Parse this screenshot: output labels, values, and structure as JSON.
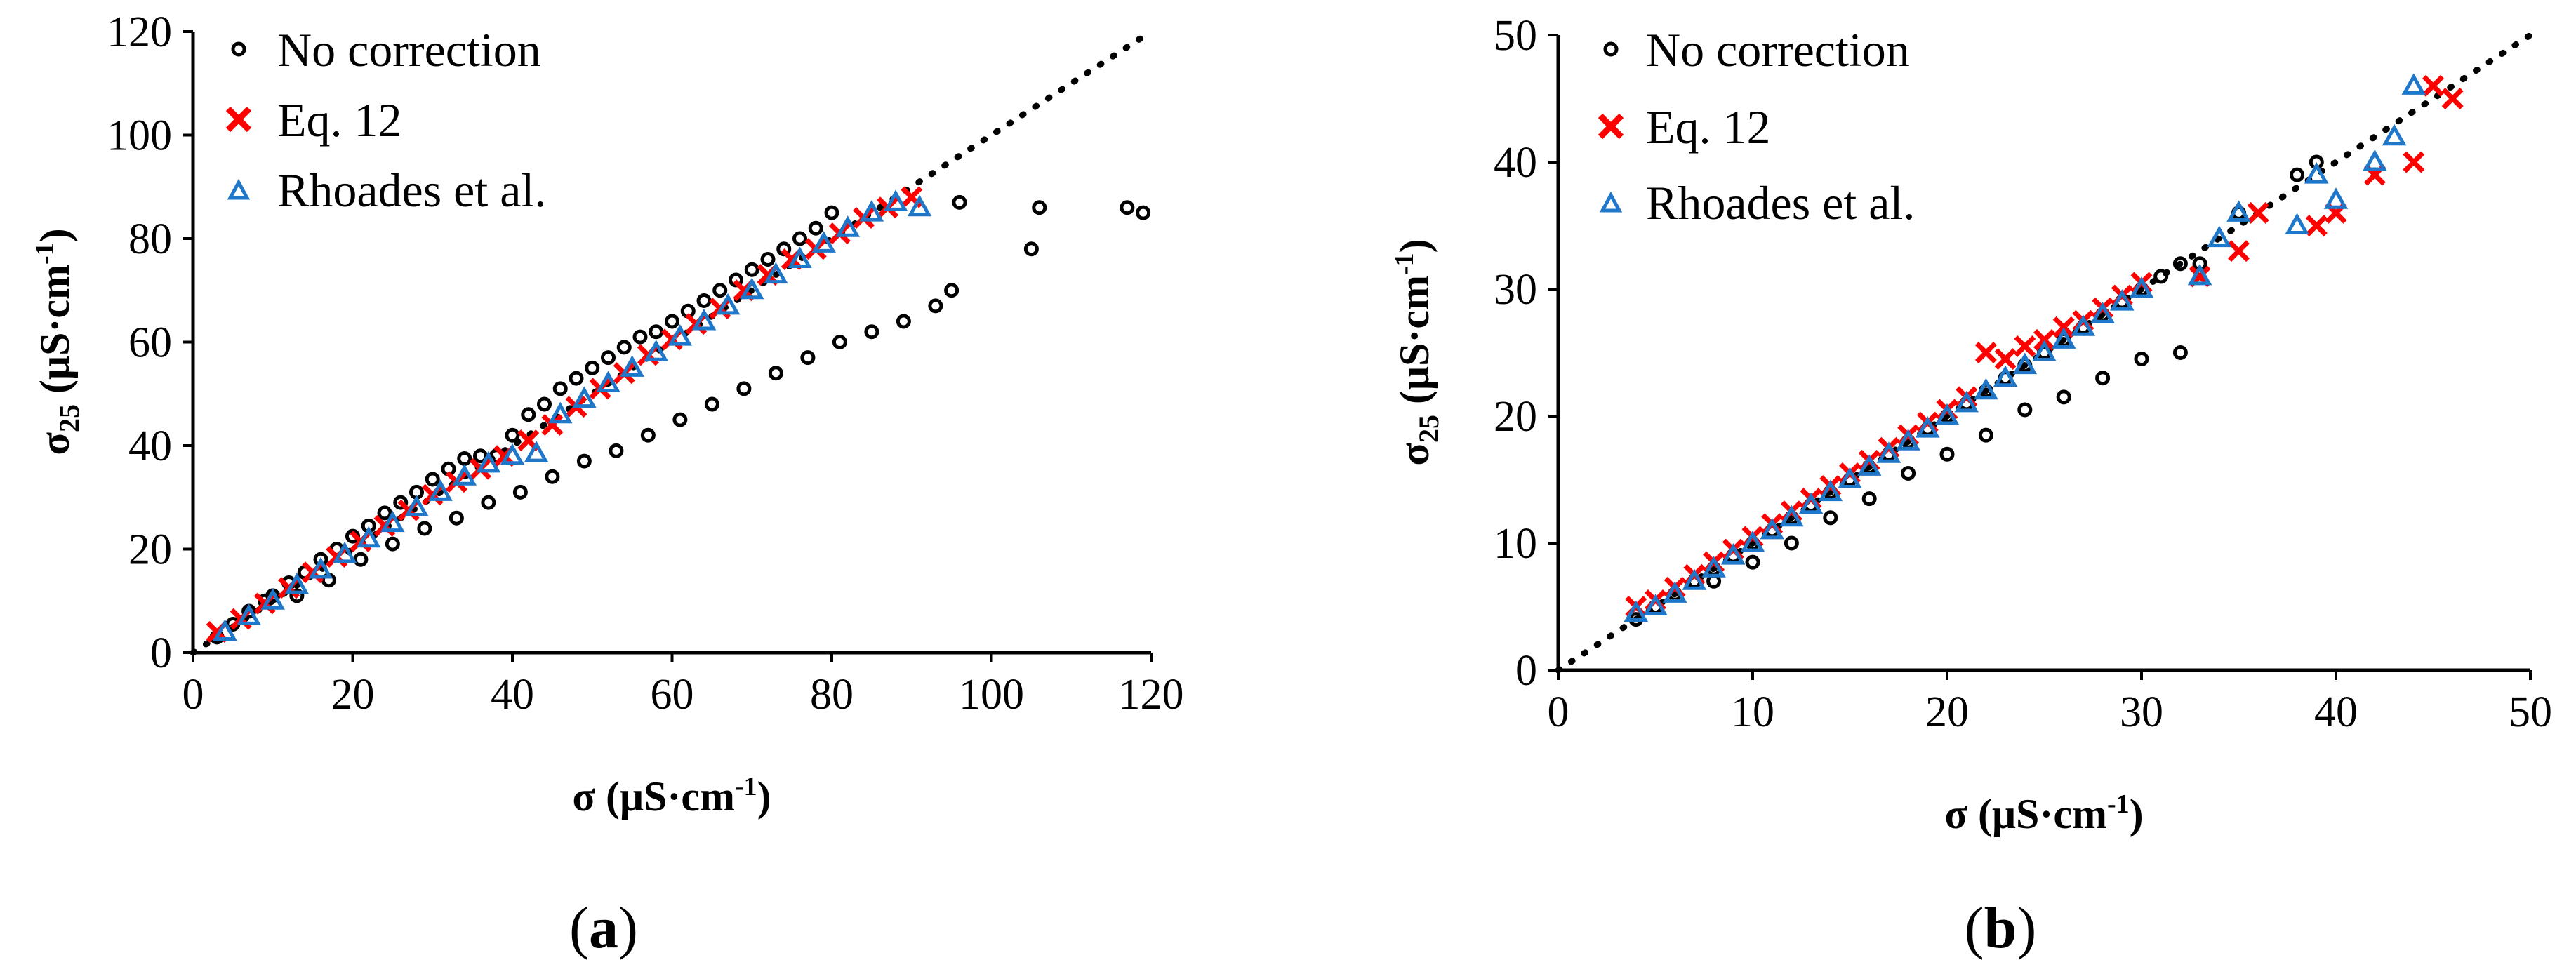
{
  "colors": {
    "no_correction": "#000000",
    "eq12": "#ff0000",
    "rhoades": "#1f77c9",
    "identity_line": "#000000"
  },
  "panels": [
    {
      "label_open": "(",
      "label_letter": "a",
      "label_close": ")",
      "xlabel": "σ (μS·cm",
      "xlabel_sup": "-1",
      "xlabel_close": ")",
      "ylabel_main": "σ",
      "ylabel_sub": "25",
      "ylabel_rest": " (μS·cm",
      "ylabel_sup": "-1",
      "ylabel_close": ")",
      "xticks": [
        "0",
        "20",
        "40",
        "60",
        "80",
        "100",
        "120"
      ],
      "yticks": [
        "0",
        "20",
        "40",
        "60",
        "80",
        "100",
        "120"
      ],
      "legend": [
        "No correction",
        "Eq. 12",
        "Rhoades et al."
      ]
    },
    {
      "label_open": "(",
      "label_letter": "b",
      "label_close": ")",
      "xlabel": "σ (μS·cm",
      "xlabel_sup": "-1",
      "xlabel_close": ")",
      "ylabel_main": "σ",
      "ylabel_sub": "25",
      "ylabel_rest": " (μS·cm",
      "ylabel_sup": "-1",
      "ylabel_close": ")",
      "xticks": [
        "0",
        "10",
        "20",
        "30",
        "40",
        "50"
      ],
      "yticks": [
        "0",
        "10",
        "20",
        "30",
        "40",
        "50"
      ],
      "legend": [
        "No correction",
        "Eq. 12",
        "Rhoades et al."
      ]
    }
  ],
  "chart_data": [
    {
      "type": "scatter",
      "panel": "a",
      "xlim": [
        0,
        120
      ],
      "ylim": [
        0,
        120
      ],
      "grid": false,
      "legend_position": "top-left",
      "reference_line": {
        "style": "dotted",
        "x": [
          0,
          120
        ],
        "y": [
          0,
          120
        ]
      },
      "series": [
        {
          "name": "No correction",
          "marker": "circle",
          "x": [
            3,
            5,
            7,
            9,
            10,
            12,
            14,
            16,
            18,
            20,
            22,
            24,
            26,
            28,
            30,
            32,
            34,
            36,
            38,
            40,
            42,
            44,
            46,
            48,
            50,
            52,
            54,
            56,
            58,
            60,
            62,
            64,
            66,
            68,
            70,
            72,
            74,
            76,
            78,
            80,
            13,
            17,
            21,
            25,
            29,
            33,
            37,
            41,
            45,
            49,
            53,
            57,
            61,
            65,
            69,
            73,
            77,
            81,
            85,
            89,
            93,
            95,
            96,
            105,
            106,
            117,
            119
          ],
          "y": [
            3,
            5.5,
            8,
            10,
            11,
            13.5,
            15.5,
            18,
            20,
            22.5,
            24.5,
            27,
            29,
            31,
            33.5,
            35.5,
            37.5,
            38,
            38,
            42,
            46,
            48,
            51,
            53,
            55,
            57,
            59,
            61,
            62,
            64,
            66,
            68,
            70,
            72,
            74,
            76,
            78,
            80,
            82,
            85,
            11,
            14,
            18,
            21,
            24,
            26,
            29,
            31,
            34,
            37,
            39,
            42,
            45,
            48,
            51,
            54,
            57,
            60,
            62,
            64,
            67,
            70,
            87,
            78,
            86,
            86,
            85
          ]
        },
        {
          "name": "Eq. 12",
          "marker": "x",
          "x": [
            3,
            6,
            9,
            12,
            15,
            18,
            21,
            24,
            27,
            30,
            33,
            36,
            39,
            42,
            45,
            48,
            51,
            54,
            57,
            60,
            63,
            66,
            69,
            72,
            75,
            78,
            81,
            84,
            87,
            90
          ],
          "y": [
            4,
            6.5,
            9.5,
            12.5,
            15.5,
            18.5,
            21.5,
            24.5,
            27.5,
            30.5,
            33,
            35.5,
            38,
            41,
            44,
            47.5,
            51,
            54,
            57.5,
            60.5,
            63.5,
            66.5,
            70,
            73,
            76,
            78,
            81,
            84,
            86,
            88
          ]
        },
        {
          "name": "Rhoades et al.",
          "marker": "triangle",
          "x": [
            4,
            7,
            10,
            13,
            16,
            19,
            22,
            25,
            28,
            31,
            34,
            37,
            40,
            43,
            46,
            49,
            52,
            55,
            58,
            61,
            64,
            67,
            70,
            73,
            76,
            79,
            82,
            85,
            88,
            91
          ],
          "y": [
            4,
            7,
            10,
            13,
            16,
            19,
            22,
            25,
            28,
            31,
            34,
            36.5,
            38,
            38.5,
            46,
            49,
            52,
            55,
            58,
            61,
            64,
            67,
            70,
            73,
            76,
            79,
            82,
            85,
            87,
            86
          ]
        }
      ]
    },
    {
      "type": "scatter",
      "panel": "b",
      "xlim": [
        0,
        50
      ],
      "ylim": [
        0,
        50
      ],
      "grid": false,
      "legend_position": "top-left",
      "reference_line": {
        "style": "dotted",
        "x": [
          0,
          50
        ],
        "y": [
          0,
          50
        ]
      },
      "series": [
        {
          "name": "No correction",
          "marker": "circle",
          "x": [
            4,
            5,
            6,
            7,
            8,
            9,
            10,
            11,
            12,
            13,
            14,
            15,
            16,
            17,
            18,
            19,
            20,
            21,
            22,
            23,
            24,
            25,
            26,
            27,
            28,
            29,
            30,
            31,
            32,
            8,
            10,
            12,
            14,
            16,
            18,
            20,
            22,
            24,
            26,
            28,
            30,
            32,
            33,
            35,
            38,
            39
          ],
          "y": [
            4,
            5,
            6,
            7,
            8,
            9,
            10,
            11,
            12,
            13,
            14,
            15,
            16,
            17,
            18,
            19,
            20,
            21,
            22,
            23,
            24,
            25,
            26,
            27,
            28,
            29,
            30,
            31,
            32,
            7,
            8.5,
            10,
            12,
            13.5,
            15.5,
            17,
            18.5,
            20.5,
            21.5,
            23,
            24.5,
            25,
            32,
            36,
            39,
            40
          ]
        },
        {
          "name": "Eq. 12",
          "marker": "x",
          "x": [
            4,
            5,
            6,
            7,
            8,
            9,
            10,
            11,
            12,
            13,
            14,
            15,
            16,
            17,
            18,
            19,
            20,
            21,
            22,
            23,
            24,
            25,
            26,
            27,
            28,
            29,
            30,
            33,
            35,
            36,
            39,
            40,
            42,
            44,
            45,
            46
          ],
          "y": [
            5,
            5.5,
            6.5,
            7.5,
            8.5,
            9.5,
            10.5,
            11.5,
            12.5,
            13.5,
            14.5,
            15.5,
            16.5,
            17.5,
            18.5,
            19.5,
            20.5,
            21.5,
            25,
            24.5,
            25.5,
            26,
            27,
            27.5,
            28.5,
            29.5,
            30.5,
            31,
            33,
            36,
            35,
            36,
            39,
            40,
            46,
            45
          ]
        },
        {
          "name": "Rhoades et al.",
          "marker": "triangle",
          "x": [
            4,
            5,
            6,
            7,
            8,
            9,
            10,
            11,
            12,
            13,
            14,
            15,
            16,
            17,
            18,
            19,
            20,
            21,
            22,
            23,
            24,
            25,
            26,
            27,
            28,
            29,
            30,
            33,
            34,
            35,
            38,
            39,
            40,
            42,
            43,
            44
          ],
          "y": [
            4.5,
            5,
            6,
            7,
            8,
            9,
            10,
            11,
            12,
            13,
            14,
            15,
            16,
            17,
            18,
            19,
            20,
            21,
            22,
            23,
            24,
            25,
            26,
            27,
            28,
            29,
            30,
            31,
            34,
            36,
            35,
            39,
            37,
            40,
            42,
            46
          ]
        }
      ]
    }
  ]
}
